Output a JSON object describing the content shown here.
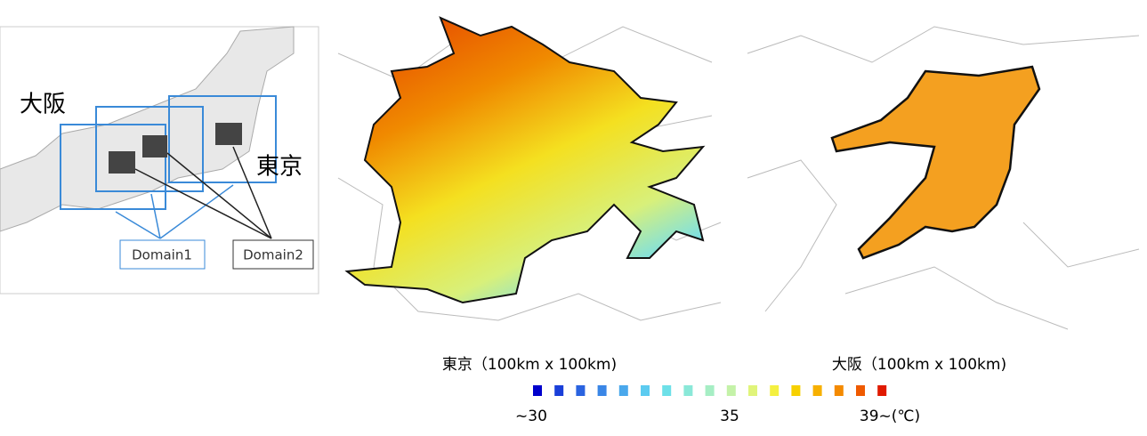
{
  "inset": {
    "label_osaka": "大阪",
    "label_tokyo": "東京",
    "domain1": "Domain1",
    "domain2": "Domain2"
  },
  "panels": [
    {
      "caption": "東京（100km x 100km)"
    },
    {
      "caption": "大阪（100km x 100km)"
    }
  ],
  "colorbar": {
    "colors": [
      "#0000cc",
      "#1a3fd9",
      "#2a63e0",
      "#3a86e6",
      "#4aa8ec",
      "#5ccbf0",
      "#6de0e8",
      "#8ae8d8",
      "#a6eec4",
      "#c4f2a8",
      "#e0f47a",
      "#f4f040",
      "#f7d000",
      "#f7b000",
      "#f48a00",
      "#ef5a00",
      "#e01a00"
    ],
    "labels": [
      "~30",
      "35",
      "39~(℃)"
    ]
  }
}
